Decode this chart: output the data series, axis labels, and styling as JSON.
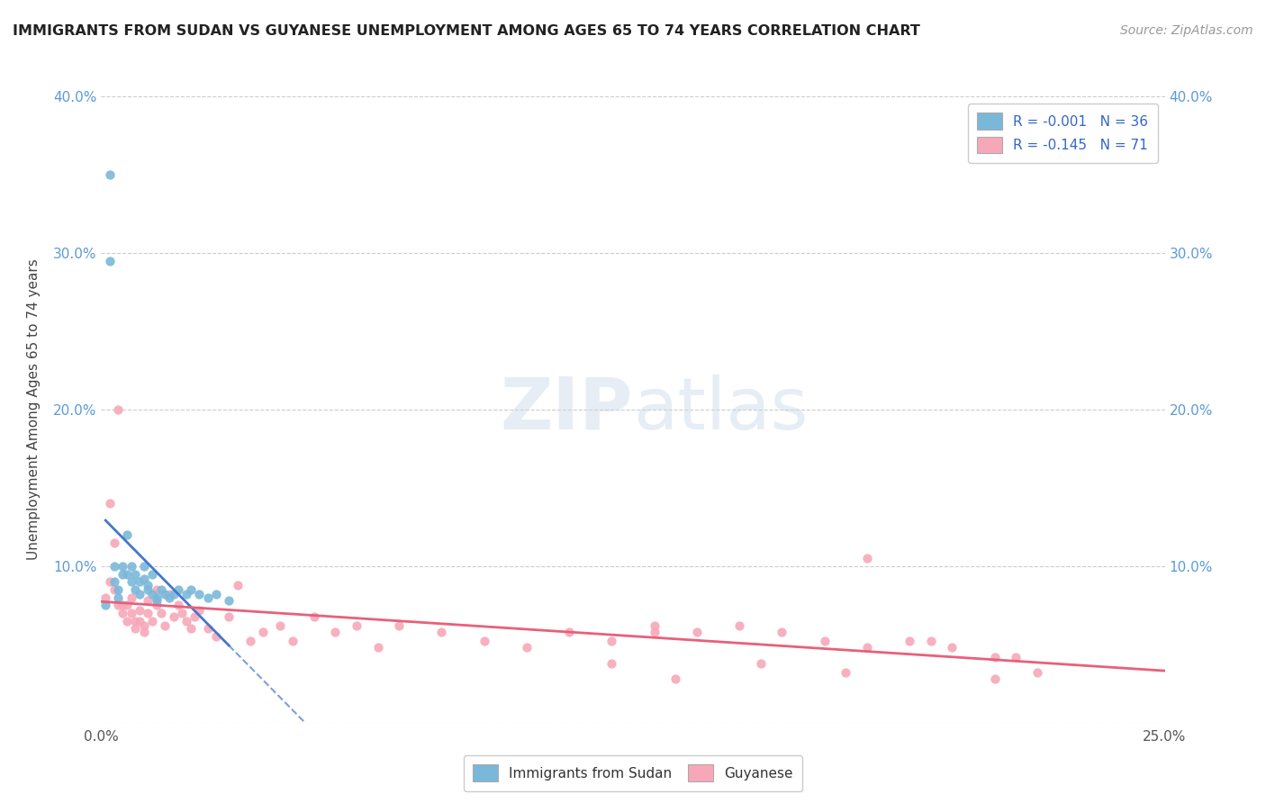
{
  "title": "IMMIGRANTS FROM SUDAN VS GUYANESE UNEMPLOYMENT AMONG AGES 65 TO 74 YEARS CORRELATION CHART",
  "source": "Source: ZipAtlas.com",
  "ylabel": "Unemployment Among Ages 65 to 74 years",
  "xlim": [
    0.0,
    0.25
  ],
  "ylim": [
    0.0,
    0.4
  ],
  "xticks": [
    0.0,
    0.05,
    0.1,
    0.15,
    0.2,
    0.25
  ],
  "xtick_labels": [
    "0.0%",
    "",
    "",
    "",
    "",
    "25.0%"
  ],
  "yticks": [
    0.0,
    0.1,
    0.2,
    0.3,
    0.4
  ],
  "ytick_labels": [
    "",
    "10.0%",
    "20.0%",
    "30.0%",
    "40.0%"
  ],
  "color_sudan": "#7ab8d9",
  "color_guyanese": "#f7a8b8",
  "color_line_sudan": "#4477cc",
  "color_line_guyanese": "#e8607a",
  "sudan_x": [
    0.001,
    0.002,
    0.002,
    0.003,
    0.003,
    0.004,
    0.004,
    0.005,
    0.005,
    0.006,
    0.006,
    0.007,
    0.007,
    0.008,
    0.008,
    0.009,
    0.009,
    0.01,
    0.01,
    0.011,
    0.011,
    0.012,
    0.012,
    0.013,
    0.013,
    0.014,
    0.015,
    0.016,
    0.017,
    0.018,
    0.02,
    0.021,
    0.023,
    0.025,
    0.027,
    0.03
  ],
  "sudan_y": [
    0.075,
    0.35,
    0.295,
    0.1,
    0.09,
    0.085,
    0.08,
    0.1,
    0.095,
    0.12,
    0.095,
    0.1,
    0.09,
    0.095,
    0.085,
    0.09,
    0.082,
    0.1,
    0.092,
    0.088,
    0.085,
    0.095,
    0.082,
    0.08,
    0.078,
    0.085,
    0.082,
    0.08,
    0.082,
    0.085,
    0.082,
    0.085,
    0.082,
    0.08,
    0.082,
    0.078
  ],
  "guyanese_x": [
    0.001,
    0.002,
    0.002,
    0.003,
    0.003,
    0.004,
    0.004,
    0.005,
    0.005,
    0.006,
    0.006,
    0.007,
    0.007,
    0.008,
    0.008,
    0.009,
    0.009,
    0.01,
    0.01,
    0.011,
    0.011,
    0.012,
    0.013,
    0.013,
    0.014,
    0.015,
    0.016,
    0.017,
    0.018,
    0.019,
    0.02,
    0.021,
    0.022,
    0.023,
    0.025,
    0.027,
    0.03,
    0.032,
    0.035,
    0.038,
    0.042,
    0.045,
    0.05,
    0.055,
    0.06,
    0.065,
    0.07,
    0.08,
    0.09,
    0.1,
    0.11,
    0.12,
    0.13,
    0.14,
    0.15,
    0.16,
    0.17,
    0.18,
    0.12,
    0.13,
    0.19,
    0.2,
    0.21,
    0.18,
    0.195,
    0.215,
    0.22,
    0.135,
    0.155,
    0.175,
    0.21
  ],
  "guyanese_y": [
    0.08,
    0.09,
    0.14,
    0.085,
    0.115,
    0.075,
    0.2,
    0.075,
    0.07,
    0.075,
    0.065,
    0.08,
    0.07,
    0.065,
    0.06,
    0.072,
    0.065,
    0.062,
    0.058,
    0.078,
    0.07,
    0.065,
    0.085,
    0.075,
    0.07,
    0.062,
    0.082,
    0.068,
    0.075,
    0.07,
    0.065,
    0.06,
    0.068,
    0.072,
    0.06,
    0.055,
    0.068,
    0.088,
    0.052,
    0.058,
    0.062,
    0.052,
    0.068,
    0.058,
    0.062,
    0.048,
    0.062,
    0.058,
    0.052,
    0.048,
    0.058,
    0.052,
    0.062,
    0.058,
    0.062,
    0.058,
    0.052,
    0.048,
    0.038,
    0.058,
    0.052,
    0.048,
    0.042,
    0.105,
    0.052,
    0.042,
    0.032,
    0.028,
    0.038,
    0.032,
    0.028
  ]
}
